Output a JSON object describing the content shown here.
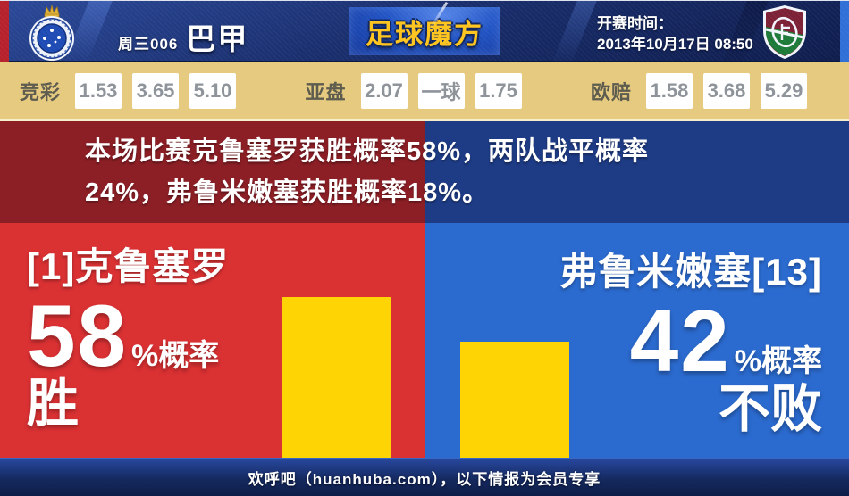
{
  "header": {
    "match_code": "周三006",
    "league": "巴甲",
    "site_logo": "足球魔方",
    "kickoff_label": "开赛时间：",
    "kickoff_time": "2013年10月17日 08:50",
    "home_badge": "cruzeiro-club-badge",
    "away_badge": "fluminense-club-badge"
  },
  "odds": {
    "jingcai": {
      "label": "竞彩",
      "values": [
        "1.53",
        "3.65",
        "5.10"
      ]
    },
    "yapan": {
      "label": "亚盘",
      "values": [
        "2.07",
        "一球",
        "1.75"
      ]
    },
    "oupei": {
      "label": "欧赔",
      "values": [
        "1.58",
        "3.68",
        "5.29"
      ]
    }
  },
  "summary": {
    "text": "本场比赛克鲁塞罗获胜概率58%，两队战平概率24%，弗鲁米嫩塞获胜概率18%。",
    "home_win_pct": 58,
    "draw_pct": 24,
    "away_win_pct": 18
  },
  "panels": {
    "home": {
      "team": "[1]克鲁塞罗",
      "probability": 58,
      "big": "58",
      "unit": "%概率",
      "outcome": "胜"
    },
    "away": {
      "team": "弗鲁米嫩塞[13]",
      "probability": 42,
      "big": "42",
      "unit": "%概率",
      "outcome": "不败"
    }
  },
  "footer": {
    "text": "欢呼吧（huanhuba.com），以下情报为会员专享"
  },
  "colors": {
    "panel_red": "#da3133",
    "panel_blue": "#2b6ace",
    "banner_red": "#8c1f26",
    "banner_blue": "#1e3c86",
    "bar_yellow": "#ffd405",
    "odds_bg_tan": "#e6ca80",
    "header_navy": "#1a2f6e",
    "logo_gold": "#ffc51e"
  }
}
